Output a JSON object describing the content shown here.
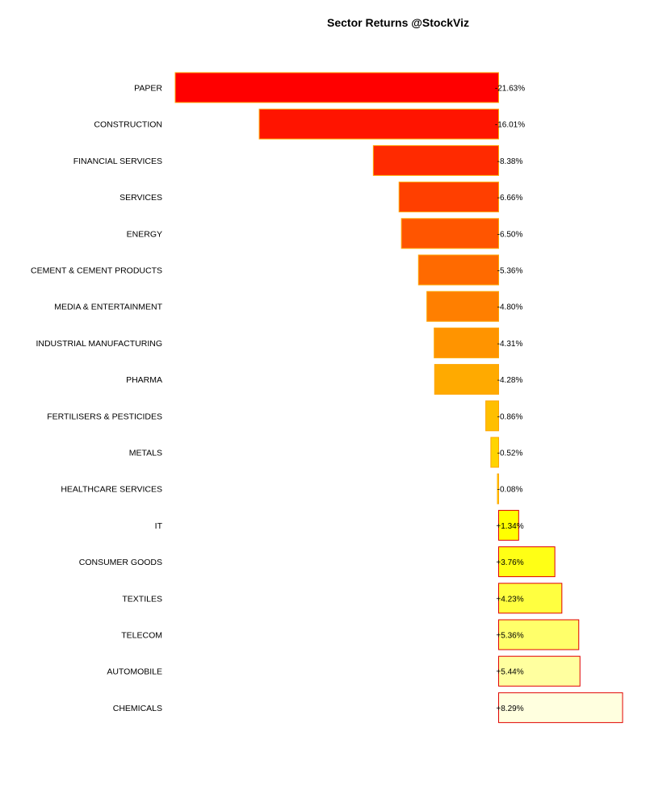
{
  "chart_data": {
    "type": "bar",
    "orientation": "horizontal",
    "title": "Sector Returns @StockViz",
    "xlabel": "",
    "ylabel": "",
    "xlim": [
      -21.63,
      8.29
    ],
    "grid": false,
    "categories": [
      "PAPER",
      "CONSTRUCTION",
      "FINANCIAL SERVICES",
      "SERVICES",
      "ENERGY",
      "CEMENT & CEMENT PRODUCTS",
      "MEDIA & ENTERTAINMENT",
      "INDUSTRIAL MANUFACTURING",
      "PHARMA",
      "FERTILISERS & PESTICIDES",
      "METALS",
      "HEALTHCARE SERVICES",
      "IT",
      "CONSUMER GOODS",
      "TEXTILES",
      "TELECOM",
      "AUTOMOBILE",
      "CHEMICALS"
    ],
    "values": [
      -21.63,
      -16.01,
      -8.38,
      -6.66,
      -6.5,
      -5.36,
      -4.8,
      -4.31,
      -4.28,
      -0.86,
      -0.52,
      -0.08,
      1.34,
      3.76,
      4.23,
      5.36,
      5.44,
      8.29
    ],
    "value_labels": [
      "-21.63%",
      "-16.01%",
      "-8.38%",
      "-6.66%",
      "-6.50%",
      "-5.36%",
      "-4.80%",
      "-4.31%",
      "-4.28%",
      "-0.86%",
      "-0.52%",
      "-0.08%",
      "+1.34%",
      "+3.76%",
      "+4.23%",
      "+5.36%",
      "+5.44%",
      "+8.29%"
    ],
    "bar_colors": [
      "#FF0000",
      "#FF1400",
      "#FF2A00",
      "#FF3F00",
      "#FF5500",
      "#FF6A00",
      "#FF7F00",
      "#FF9400",
      "#FFAA00",
      "#FFBF00",
      "#FFD400",
      "#FFEA00",
      "#FFFF00",
      "#FFFF15",
      "#FFFF40",
      "#FFFF6A",
      "#FFFF9F",
      "#FFFFDF"
    ],
    "negative_border_color": "#FFA500",
    "positive_border_color": "#E00000"
  }
}
